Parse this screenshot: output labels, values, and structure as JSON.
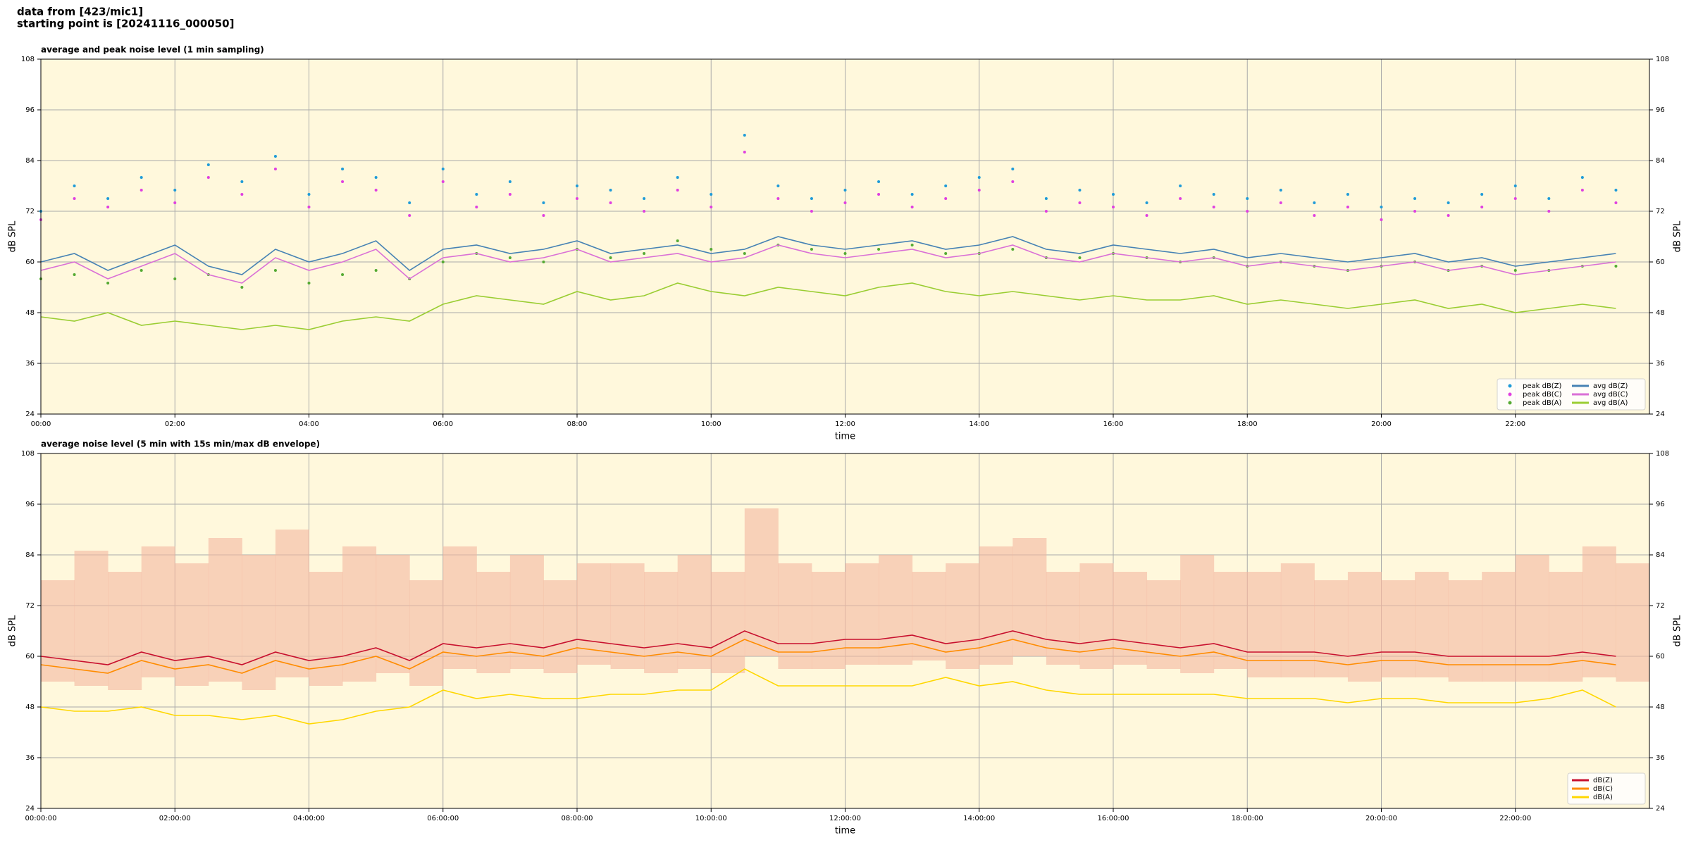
{
  "header": {
    "line1": "data from [423/mic1]",
    "line2": "starting point is [20241116_000050]"
  },
  "chart_data": [
    {
      "type": "line",
      "title": "average and peak noise level (1 min sampling)",
      "xlabel": "time",
      "ylabel": "dB SPL",
      "background": "#fff8dc",
      "grid": true,
      "legend": "lower right",
      "legend_columns": 2,
      "xlim": [
        0,
        24
      ],
      "ylim": [
        24,
        108
      ],
      "yticks": [
        24,
        36,
        48,
        60,
        72,
        84,
        96,
        108
      ],
      "xticks": [
        {
          "value": 0,
          "label": "00:00"
        },
        {
          "value": 2,
          "label": "02:00"
        },
        {
          "value": 4,
          "label": "04:00"
        },
        {
          "value": 6,
          "label": "06:00"
        },
        {
          "value": 8,
          "label": "08:00"
        },
        {
          "value": 10,
          "label": "10:00"
        },
        {
          "value": 12,
          "label": "12:00"
        },
        {
          "value": 14,
          "label": "14:00"
        },
        {
          "value": 16,
          "label": "16:00"
        },
        {
          "value": 18,
          "label": "18:00"
        },
        {
          "value": 20,
          "label": "20:00"
        },
        {
          "value": 22,
          "label": "22:00"
        }
      ],
      "x": [
        0,
        0.5,
        1,
        1.5,
        2,
        2.5,
        3,
        3.5,
        4,
        4.5,
        5,
        5.5,
        6,
        6.5,
        7,
        7.5,
        8,
        8.5,
        9,
        9.5,
        10,
        10.5,
        11,
        11.5,
        12,
        12.5,
        13,
        13.5,
        14,
        14.5,
        15,
        15.5,
        16,
        16.5,
        17,
        17.5,
        18,
        18.5,
        19,
        19.5,
        20,
        20.5,
        21,
        21.5,
        22,
        22.5,
        23,
        23.5
      ],
      "series": [
        {
          "name": "peak dB(Z)",
          "type": "scatter",
          "color": "#1f9bd8",
          "values": [
            72,
            78,
            75,
            80,
            77,
            83,
            79,
            85,
            76,
            82,
            80,
            74,
            82,
            76,
            79,
            74,
            78,
            77,
            75,
            80,
            76,
            90,
            78,
            75,
            77,
            79,
            76,
            78,
            80,
            82,
            75,
            77,
            76,
            74,
            78,
            76,
            75,
            77,
            74,
            76,
            73,
            75,
            74,
            76,
            78,
            75,
            80,
            77
          ]
        },
        {
          "name": "peak dB(C)",
          "type": "scatter",
          "color": "#e040e0",
          "values": [
            70,
            75,
            73,
            77,
            74,
            80,
            76,
            82,
            73,
            79,
            77,
            71,
            79,
            73,
            76,
            71,
            75,
            74,
            72,
            77,
            73,
            86,
            75,
            72,
            74,
            76,
            73,
            75,
            77,
            79,
            72,
            74,
            73,
            71,
            75,
            73,
            72,
            74,
            71,
            73,
            70,
            72,
            71,
            73,
            75,
            72,
            77,
            74
          ]
        },
        {
          "name": "peak dB(A)",
          "type": "scatter",
          "color": "#55aa33",
          "values": [
            56,
            57,
            55,
            58,
            56,
            57,
            54,
            58,
            55,
            57,
            58,
            56,
            60,
            62,
            61,
            60,
            63,
            61,
            62,
            65,
            63,
            62,
            64,
            63,
            62,
            63,
            64,
            62,
            62,
            63,
            61,
            61,
            62,
            61,
            60,
            61,
            59,
            60,
            59,
            58,
            59,
            60,
            58,
            59,
            58,
            58,
            59,
            59
          ]
        },
        {
          "name": "avg dB(Z)",
          "type": "line",
          "color": "#4682b4",
          "values": [
            60,
            62,
            58,
            61,
            64,
            59,
            57,
            63,
            60,
            62,
            65,
            58,
            63,
            64,
            62,
            63,
            65,
            62,
            63,
            64,
            62,
            63,
            66,
            64,
            63,
            64,
            65,
            63,
            64,
            66,
            63,
            62,
            64,
            63,
            62,
            63,
            61,
            62,
            61,
            60,
            61,
            62,
            60,
            61,
            59,
            60,
            61,
            62
          ]
        },
        {
          "name": "avg dB(C)",
          "type": "line",
          "color": "#da70d6",
          "values": [
            58,
            60,
            56,
            59,
            62,
            57,
            55,
            61,
            58,
            60,
            63,
            56,
            61,
            62,
            60,
            61,
            63,
            60,
            61,
            62,
            60,
            61,
            64,
            62,
            61,
            62,
            63,
            61,
            62,
            64,
            61,
            60,
            62,
            61,
            60,
            61,
            59,
            60,
            59,
            58,
            59,
            60,
            58,
            59,
            57,
            58,
            59,
            60
          ]
        },
        {
          "name": "avg dB(A)",
          "type": "line",
          "color": "#9acd32",
          "values": [
            47,
            46,
            48,
            45,
            46,
            45,
            44,
            45,
            44,
            46,
            47,
            46,
            50,
            52,
            51,
            50,
            53,
            51,
            52,
            55,
            53,
            52,
            54,
            53,
            52,
            54,
            55,
            53,
            52,
            53,
            52,
            51,
            52,
            51,
            51,
            52,
            50,
            51,
            50,
            49,
            50,
            51,
            49,
            50,
            48,
            49,
            50,
            49
          ]
        }
      ]
    },
    {
      "type": "line",
      "title": "average noise level (5 min with 15s min/max dB envelope)",
      "xlabel": "time",
      "ylabel": "dB SPL",
      "background": "#fff8dc",
      "grid": true,
      "legend": "lower right",
      "legend_columns": 1,
      "xlim": [
        0,
        24
      ],
      "ylim": [
        24,
        108
      ],
      "yticks": [
        24,
        36,
        48,
        60,
        72,
        84,
        96,
        108
      ],
      "xticks": [
        {
          "value": 0,
          "label": "00:00:00"
        },
        {
          "value": 2,
          "label": "02:00:00"
        },
        {
          "value": 4,
          "label": "04:00:00"
        },
        {
          "value": 6,
          "label": "06:00:00"
        },
        {
          "value": 8,
          "label": "08:00:00"
        },
        {
          "value": 10,
          "label": "10:00:00"
        },
        {
          "value": 12,
          "label": "12:00:00"
        },
        {
          "value": 14,
          "label": "14:00:00"
        },
        {
          "value": 16,
          "label": "16:00:00"
        },
        {
          "value": 18,
          "label": "18:00:00"
        },
        {
          "value": 20,
          "label": "20:00:00"
        },
        {
          "value": 22,
          "label": "22:00:00"
        }
      ],
      "x": [
        0,
        0.5,
        1,
        1.5,
        2,
        2.5,
        3,
        3.5,
        4,
        4.5,
        5,
        5.5,
        6,
        6.5,
        7,
        7.5,
        8,
        8.5,
        9,
        9.5,
        10,
        10.5,
        11,
        11.5,
        12,
        12.5,
        13,
        13.5,
        14,
        14.5,
        15,
        15.5,
        16,
        16.5,
        17,
        17.5,
        18,
        18.5,
        19,
        19.5,
        20,
        20.5,
        21,
        21.5,
        22,
        22.5,
        23,
        23.5
      ],
      "envelope": {
        "color": "#f4b8a0",
        "lower": [
          54,
          53,
          52,
          55,
          53,
          54,
          52,
          55,
          53,
          54,
          56,
          53,
          57,
          56,
          57,
          56,
          58,
          57,
          56,
          57,
          56,
          60,
          57,
          57,
          58,
          58,
          59,
          57,
          58,
          60,
          58,
          57,
          58,
          57,
          56,
          57,
          55,
          55,
          55,
          54,
          55,
          55,
          54,
          54,
          54,
          54,
          55,
          54
        ],
        "upper": [
          78,
          85,
          80,
          86,
          82,
          88,
          84,
          90,
          80,
          86,
          84,
          78,
          86,
          80,
          84,
          78,
          82,
          82,
          80,
          84,
          80,
          95,
          82,
          80,
          82,
          84,
          80,
          82,
          86,
          88,
          80,
          82,
          80,
          78,
          84,
          80,
          80,
          82,
          78,
          80,
          78,
          80,
          78,
          80,
          84,
          80,
          86,
          82
        ]
      },
      "series": [
        {
          "name": "dB(Z)",
          "type": "line",
          "color": "#c8102e",
          "values": [
            60,
            59,
            58,
            61,
            59,
            60,
            58,
            61,
            59,
            60,
            62,
            59,
            63,
            62,
            63,
            62,
            64,
            63,
            62,
            63,
            62,
            66,
            63,
            63,
            64,
            64,
            65,
            63,
            64,
            66,
            64,
            63,
            64,
            63,
            62,
            63,
            61,
            61,
            61,
            60,
            61,
            61,
            60,
            60,
            60,
            60,
            61,
            60
          ]
        },
        {
          "name": "dB(C)",
          "type": "line",
          "color": "#ff8c00",
          "values": [
            58,
            57,
            56,
            59,
            57,
            58,
            56,
            59,
            57,
            58,
            60,
            57,
            61,
            60,
            61,
            60,
            62,
            61,
            60,
            61,
            60,
            64,
            61,
            61,
            62,
            62,
            63,
            61,
            62,
            64,
            62,
            61,
            62,
            61,
            60,
            61,
            59,
            59,
            59,
            58,
            59,
            59,
            58,
            58,
            58,
            58,
            59,
            58
          ]
        },
        {
          "name": "dB(A)",
          "type": "line",
          "color": "#ffd700",
          "values": [
            48,
            47,
            47,
            48,
            46,
            46,
            45,
            46,
            44,
            45,
            47,
            48,
            52,
            50,
            51,
            50,
            50,
            51,
            51,
            52,
            52,
            57,
            53,
            53,
            53,
            53,
            53,
            55,
            53,
            54,
            52,
            51,
            51,
            51,
            51,
            51,
            50,
            50,
            50,
            49,
            50,
            50,
            49,
            49,
            49,
            50,
            52,
            48
          ]
        }
      ]
    }
  ]
}
